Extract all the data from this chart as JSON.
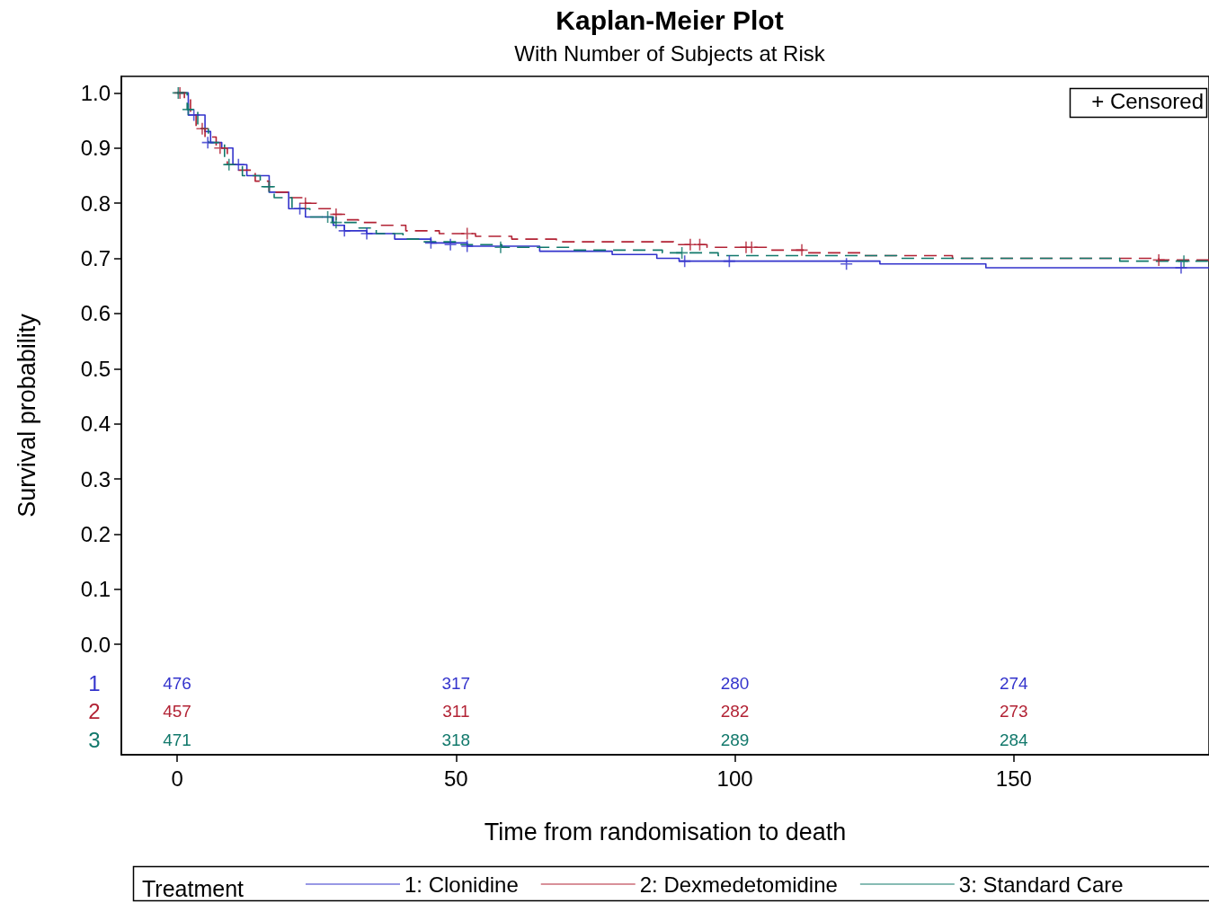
{
  "chart_data": {
    "type": "step",
    "title": "Kaplan-Meier Plot",
    "subtitle": "With Number of Subjects at Risk",
    "xlabel": "Time from randomisation to death",
    "ylabel": "Survival probability",
    "legend_title": "Treatment",
    "legend": "bottom",
    "xlim": [
      -10,
      185
    ],
    "xticks": [
      0,
      50,
      100,
      150
    ],
    "ylim": [
      -0.2,
      1.03
    ],
    "yticks": [
      {
        "value": 0,
        "label": "0.0"
      },
      {
        "value": 0.1,
        "label": "0.1"
      },
      {
        "value": 0.2,
        "label": "0.2"
      },
      {
        "value": 0.3,
        "label": "0.3"
      },
      {
        "value": 0.4,
        "label": "0.4"
      },
      {
        "value": 0.5,
        "label": "0.5"
      },
      {
        "value": 0.6,
        "label": "0.6"
      },
      {
        "value": 0.7,
        "label": "0.7"
      },
      {
        "value": 0.8,
        "label": "0.8"
      },
      {
        "value": 0.9,
        "label": "0.9"
      },
      {
        "value": 1,
        "label": "1.0"
      }
    ],
    "grid": false,
    "series": [
      {
        "name": "1: Clonidine",
        "color": "#3333cc",
        "line_style": "solid",
        "marker": "none",
        "x": [
          0,
          2,
          5,
          6,
          8,
          10,
          12.5,
          16.5,
          20,
          23,
          28,
          30,
          34,
          39,
          45.5,
          52,
          65,
          78,
          86,
          90,
          126,
          145,
          185
        ],
        "values": [
          1,
          0.96,
          0.93,
          0.91,
          0.9,
          0.87,
          0.85,
          0.82,
          0.79,
          0.775,
          0.76,
          0.75,
          0.745,
          0.735,
          0.728,
          0.722,
          0.713,
          0.707,
          0.7,
          0.695,
          0.69,
          0.683,
          0.683
        ]
      },
      {
        "name": "2: Dexmedetomidine",
        "color": "#b22234",
        "line_style": "dashed",
        "marker": "none",
        "x": [
          0,
          1.3,
          2.4,
          3.4,
          5,
          7,
          9,
          11,
          14,
          16.5,
          20,
          23,
          25,
          28,
          30,
          32.5,
          36,
          41,
          47,
          53.5,
          60,
          68,
          89,
          95,
          106.5,
          113,
          123,
          139,
          176,
          185
        ],
        "values": [
          1,
          0.99,
          0.96,
          0.935,
          0.92,
          0.9,
          0.87,
          0.86,
          0.84,
          0.82,
          0.81,
          0.8,
          0.79,
          0.78,
          0.77,
          0.765,
          0.76,
          0.75,
          0.745,
          0.74,
          0.735,
          0.73,
          0.725,
          0.72,
          0.715,
          0.71,
          0.705,
          0.7,
          0.697,
          0.697
        ]
      },
      {
        "name": "3: Standard Care",
        "color": "#11786b",
        "line_style": "dashed",
        "marker": "none",
        "x": [
          0,
          1.8,
          3.7,
          5.6,
          8.5,
          11.7,
          14.9,
          17.4,
          20.6,
          23.8,
          27.8,
          32.6,
          35.7,
          40.5,
          43.7,
          50.1,
          58.2,
          71,
          87,
          97,
          129,
          169,
          185
        ],
        "values": [
          1,
          0.97,
          0.935,
          0.91,
          0.87,
          0.85,
          0.83,
          0.81,
          0.79,
          0.775,
          0.765,
          0.755,
          0.745,
          0.735,
          0.73,
          0.725,
          0.72,
          0.715,
          0.71,
          0.705,
          0.7,
          0.695,
          0.695
        ]
      },
      {
        "type": "scatter",
        "marker": "cross",
        "color": "#3333cc",
        "x": [
          3,
          5.5,
          11,
          22,
          30,
          34,
          45.5,
          49,
          52,
          91,
          99,
          120,
          180
        ],
        "values": [
          0.96,
          0.91,
          0.87,
          0.79,
          0.75,
          0.745,
          0.728,
          0.725,
          0.722,
          0.695,
          0.695,
          0.69,
          0.683
        ]
      },
      {
        "type": "scatter",
        "marker": "cross",
        "color": "#b22234",
        "x": [
          0.5,
          4.5,
          7.7,
          23,
          28.5,
          52,
          92,
          93.7,
          102,
          103,
          112,
          176
        ],
        "values": [
          1,
          0.935,
          0.9,
          0.8,
          0.78,
          0.745,
          0.725,
          0.725,
          0.72,
          0.72,
          0.715,
          0.697
        ]
      },
      {
        "type": "scatter",
        "marker": "cross",
        "color": "#11786b",
        "x": [
          0.2,
          2,
          9.3,
          16.5,
          27,
          28.5,
          58,
          90.5,
          180.5
        ],
        "values": [
          1,
          0.97,
          0.87,
          0.83,
          0.775,
          0.765,
          0.72,
          0.71,
          0.695
        ]
      }
    ],
    "annotations": [
      "+ Censored",
      "1",
      "2",
      "3",
      "476",
      "317",
      "280",
      "274",
      "457",
      "311",
      "282",
      "273",
      "471",
      "318",
      "289",
      "284"
    ]
  }
}
